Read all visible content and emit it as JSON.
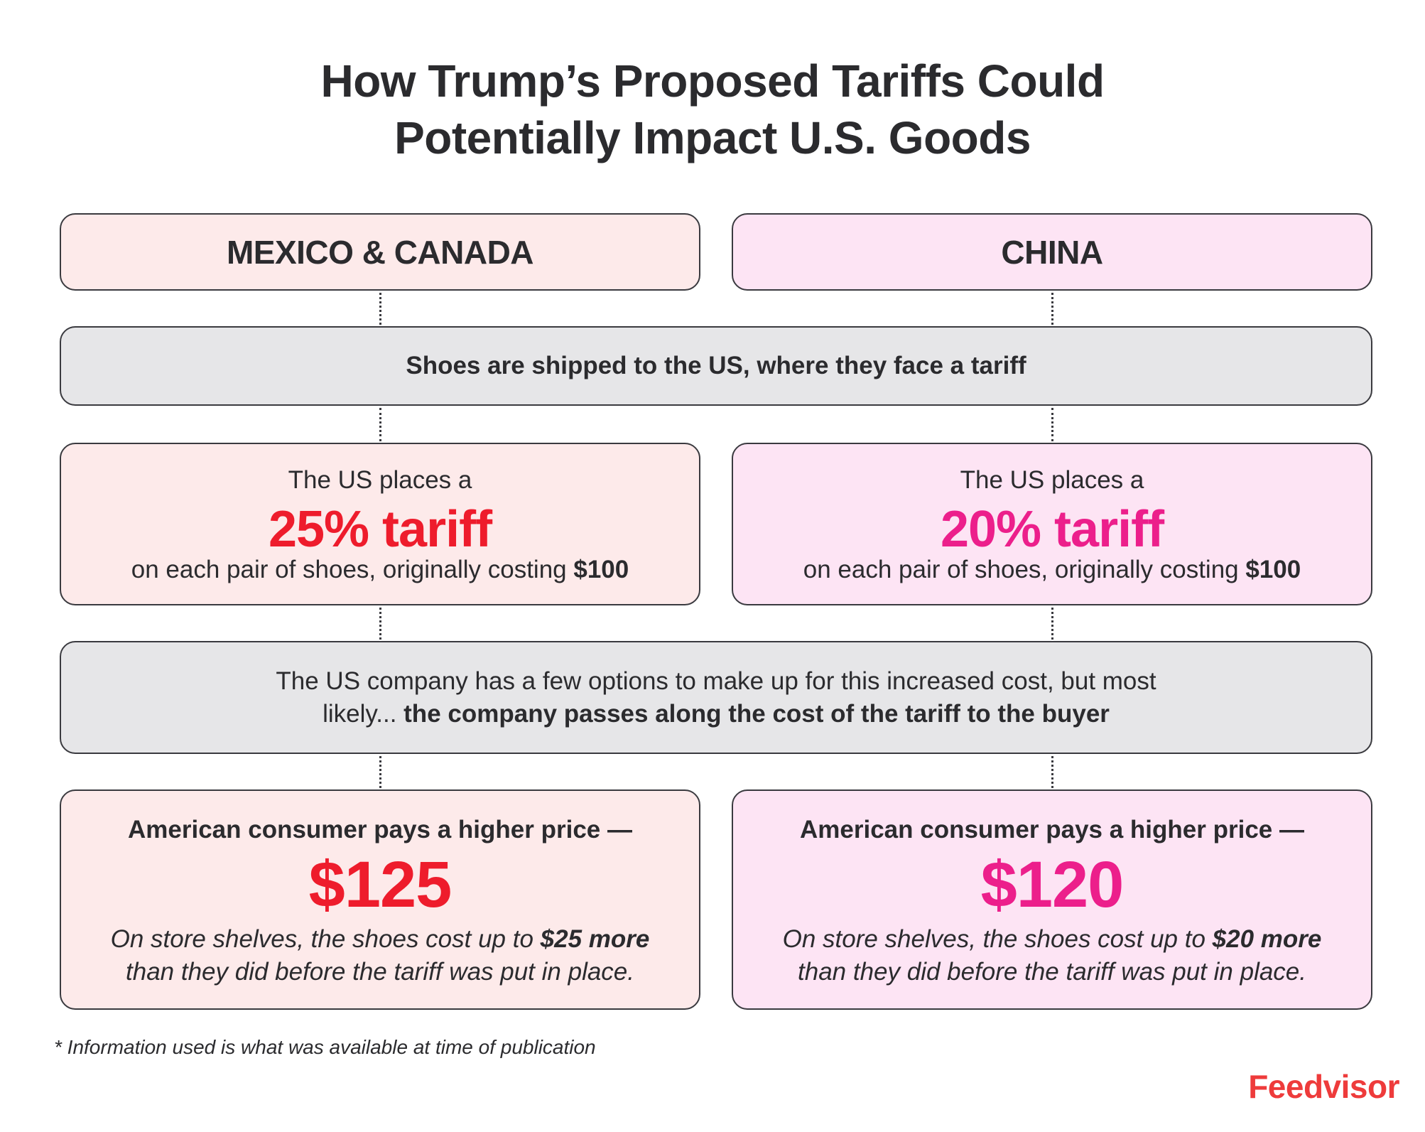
{
  "title": {
    "line1": "How Trump’s Proposed Tariffs Could",
    "line2": "Potentially Impact U.S. Goods"
  },
  "columns": [
    {
      "header": "MEXICO & CANADA",
      "tariff_pre": "The US places a",
      "tariff_value": "25% tariff",
      "tariff_post_text": "on each pair of shoes, originally costing ",
      "tariff_post_bold": "$100",
      "consumer_head": "American consumer pays a higher price —",
      "price": "$125",
      "note_pre": "On store shelves, the shoes cost up to ",
      "note_bold": "$25 more",
      "note_post": "than they did before the tariff was put in place.",
      "accent_color": "#ee1c2c",
      "background_color": "#fdeaea"
    },
    {
      "header": "CHINA",
      "tariff_pre": "The US places a",
      "tariff_value": "20% tariff",
      "tariff_post_text": "on each pair of shoes, originally costing ",
      "tariff_post_bold": "$100",
      "consumer_head": "American consumer pays a higher price —",
      "price": "$120",
      "note_pre": "On store shelves, the shoes cost up to ",
      "note_bold": "$20 more",
      "note_post": "than they did before the tariff was put in place.",
      "accent_color": "#ec1f8b",
      "background_color": "#fde4f4"
    }
  ],
  "shipping": "Shoes are shipped to the US, where they face a tariff",
  "options": {
    "line1": "The US company has a few options to make up for this increased cost, but most",
    "line2_pre": "likely... ",
    "line2_bold": "the company passes along the cost of the tariff to the buyer"
  },
  "footnote": "* Information used is what was available at time of publication",
  "brand": "Feedvisor"
}
